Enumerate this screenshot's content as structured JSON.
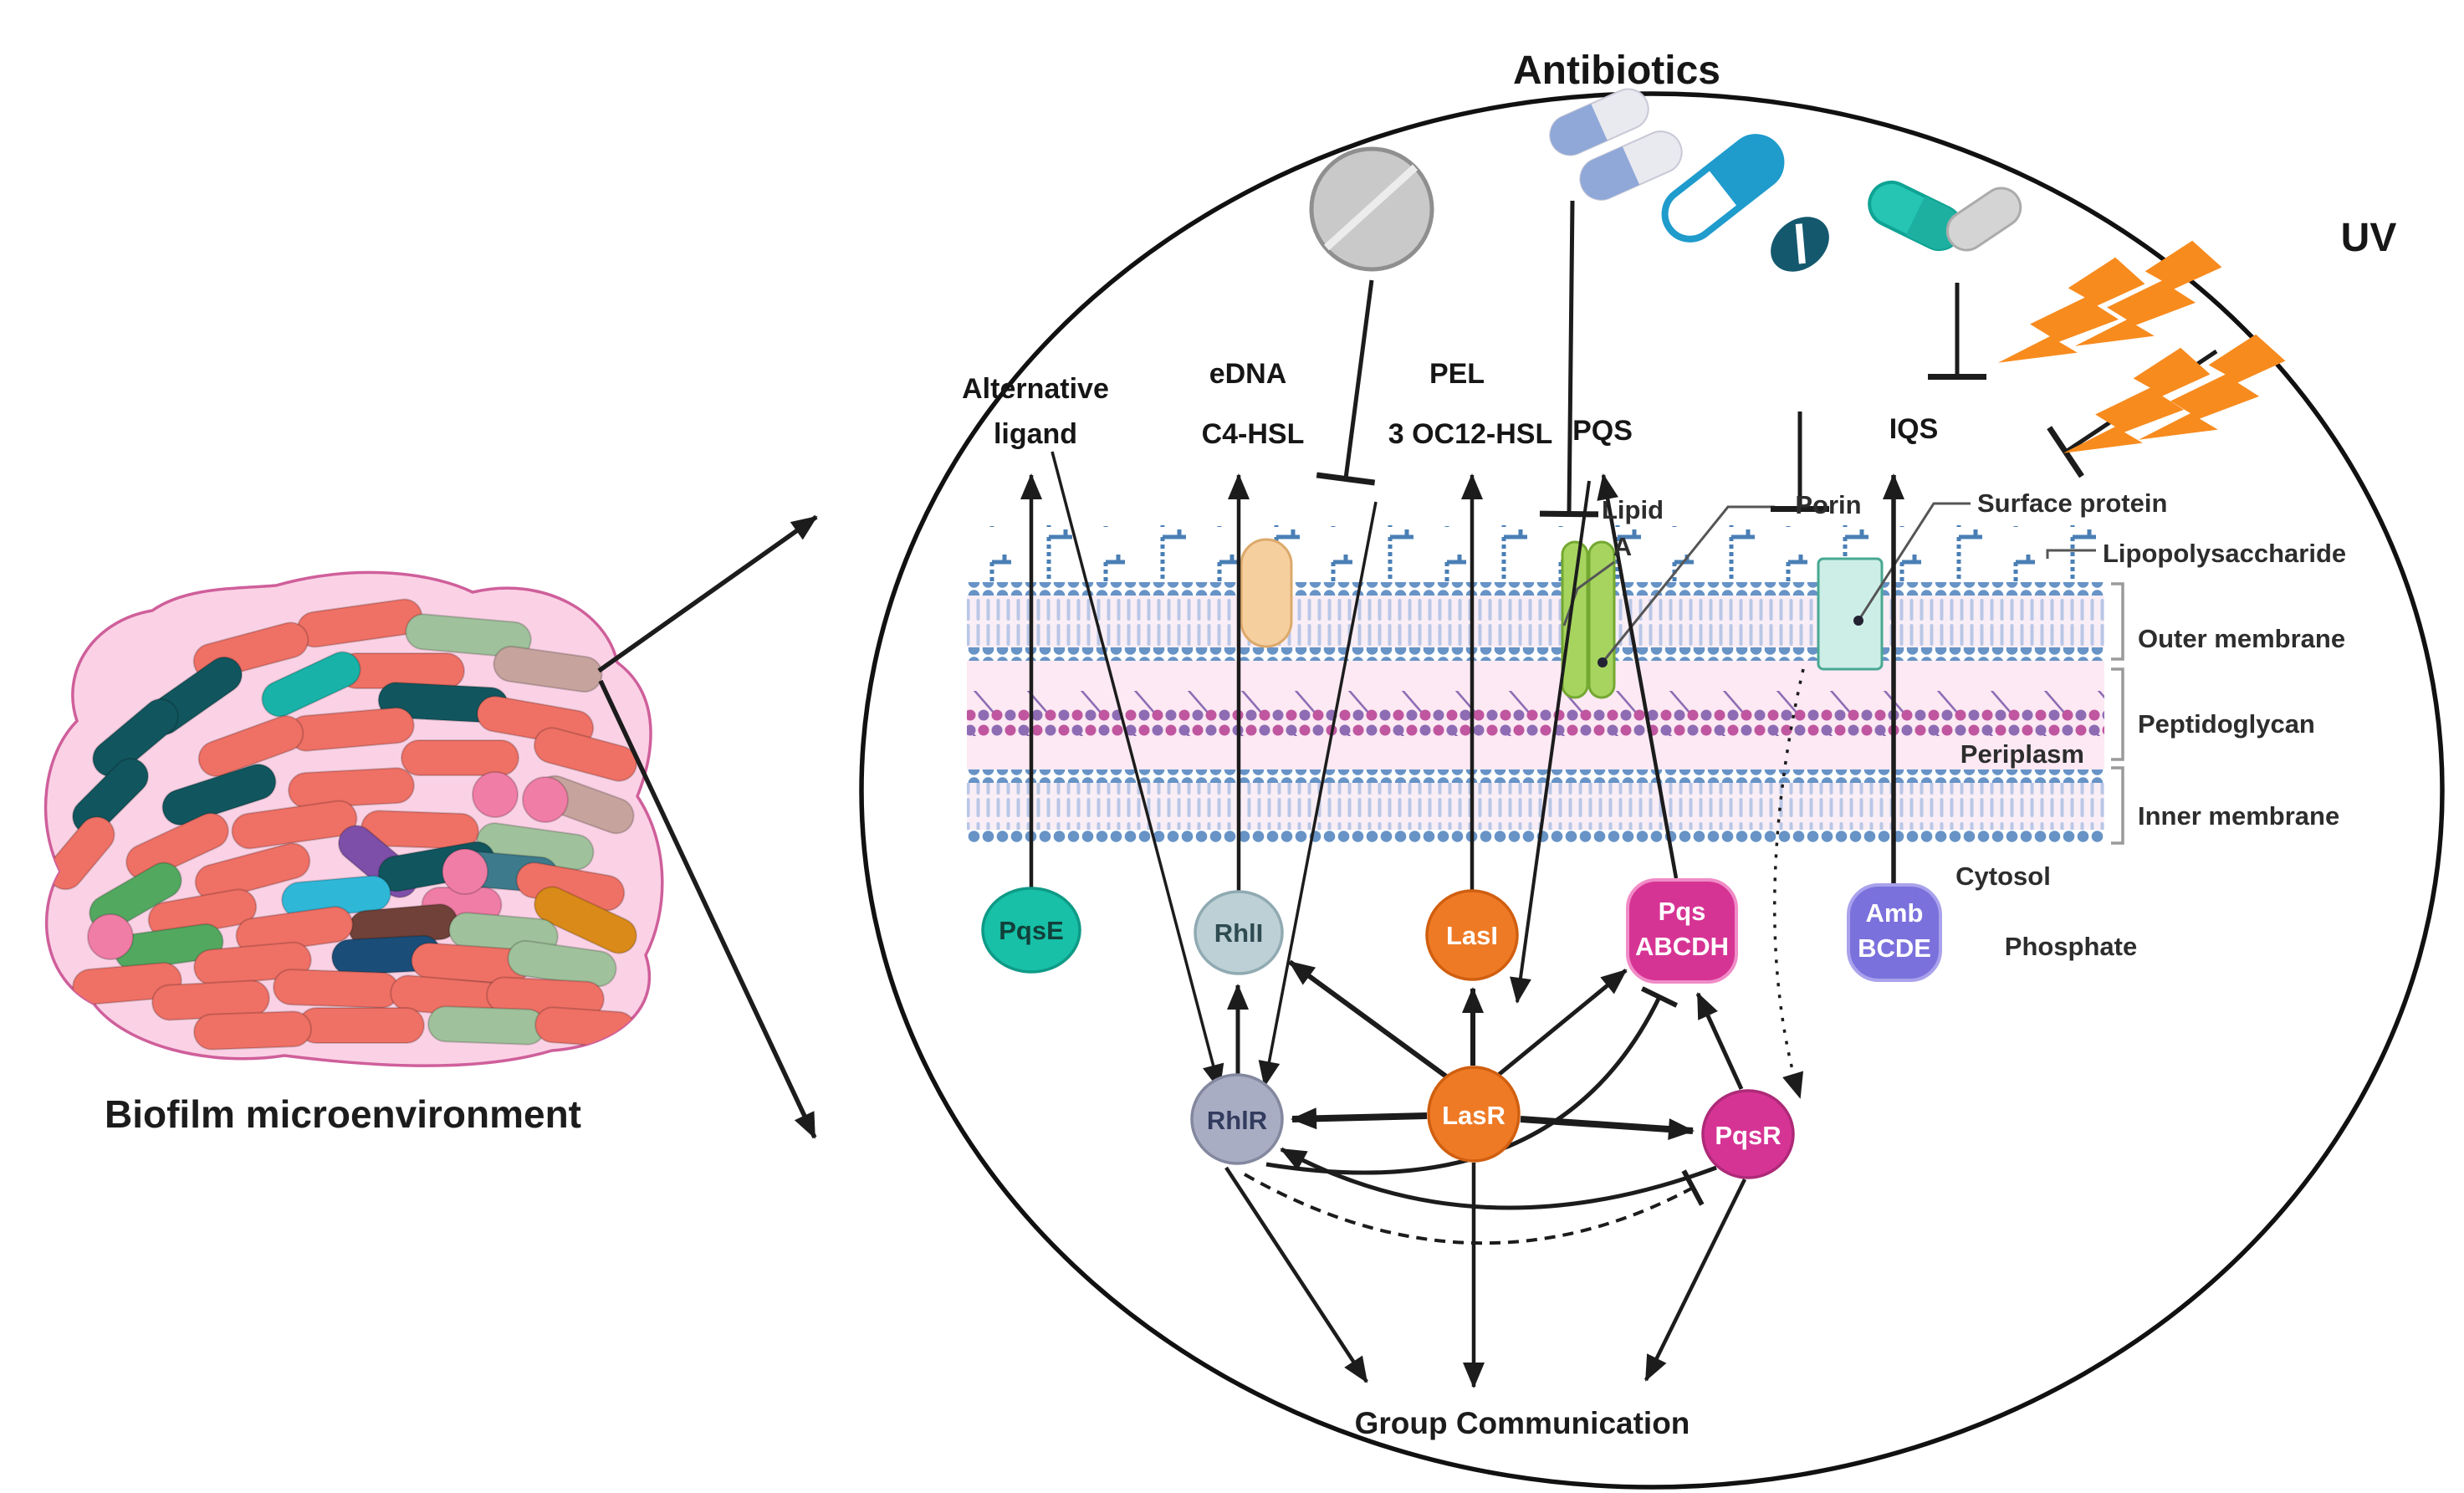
{
  "header": {
    "antibiotics": "Antibiotics",
    "uv": "UV"
  },
  "biofilm": {
    "label": "Biofilm microenvironment"
  },
  "signals": {
    "alternative_ligand_line1": "Alternative",
    "alternative_ligand_line2": "ligand",
    "edna": "eDNA",
    "c4_hsl": "C4-HSL",
    "pel": "PEL",
    "oc12_hsl": "3 OC12-HSL",
    "pqs": "PQS",
    "iqs": "IQS"
  },
  "membrane": {
    "lipid_a_line1": "Lipid",
    "lipid_a_line2": "A",
    "porin": "Porin",
    "surface_protein": "Surface protein",
    "lipopolysaccharide": "Lipopolysaccharide",
    "outer_membrane": "Outer membrane",
    "peptidoglycan": "Peptidoglycan",
    "periplasm": "Periplasm",
    "inner_membrane": "Inner membrane",
    "cytosol": "Cytosol",
    "phosphate": "Phosphate"
  },
  "nodes": {
    "pqse": "PqsE",
    "rhli": "RhlI",
    "lasi": "LasI",
    "pqs_abcdh_line1": "Pqs",
    "pqs_abcdh_line2": "ABCDH",
    "amb_bcde_line1": "Amb",
    "amb_bcde_line2": "BCDE",
    "rhlr": "RhlR",
    "lasr": "LasR",
    "pqsr": "PqsR"
  },
  "footer": {
    "group_communication": "Group Communication"
  },
  "icons": {
    "tablet": "tablet-pill-icon",
    "capsule_pair": "capsule-pair-icon",
    "capsule_and_pill": "capsule-and-pill-icon",
    "teal_capsules": "teal-capsule-pair-icon",
    "uv_bolts": "uv-lightning-bolts-icon"
  },
  "colors": {
    "cell_outline": "#111111",
    "biofilm_matrix": "#fbd2e5",
    "bacteria_salmon": "#ef7065",
    "membrane_blue": "#6793c6",
    "peptidoglycan_purple": "#8d6cb4",
    "node_pqse": "#17c0a7",
    "node_rhli": "#bdd0d5",
    "node_lasi": "#ee7a25",
    "node_lasr": "#ee7a25",
    "node_rhlr": "#a8adc4",
    "node_pqsr": "#d63494",
    "node_pqs_abcdh": "#d63494",
    "node_amb_bcde": "#7b71dc",
    "uv_bolt": "#f78b1e"
  }
}
